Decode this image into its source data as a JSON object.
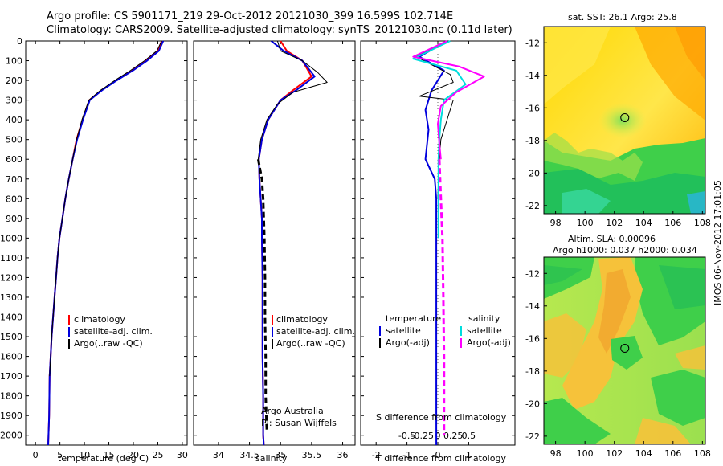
{
  "header": {
    "line1": "Argo profile: CS 5901171_219 29-Oct-2012 20121030_399 16.599S 102.714E",
    "line2": "Climatology: CARS2009. Satellite-adjusted climatology: synTS_20121030.nc (0.11d later)"
  },
  "side_stamp": "IMOS 06-Nov-2012 17:01:05",
  "colors": {
    "climatology": "#ff0000",
    "satellite": "#0000dd",
    "argo": "#000000",
    "sal_satellite": "#00dddd",
    "sal_argo": "#ff00ff"
  },
  "chart_data": [
    {
      "type": "line",
      "id": "temperature",
      "xlabel": "temperature (deg C)",
      "ylabel": "",
      "xlim": [
        -2,
        31
      ],
      "ylim": [
        2050,
        0
      ],
      "xticks": [
        0,
        5,
        10,
        15,
        20,
        25,
        30
      ],
      "yticks": [
        0,
        100,
        200,
        300,
        400,
        500,
        600,
        700,
        800,
        900,
        1000,
        1100,
        1200,
        1300,
        1400,
        1500,
        1600,
        1700,
        1800,
        1900,
        2000
      ],
      "legend": [
        "climatology",
        "satellite-adj. clim.",
        "Argo(..raw -QC)"
      ],
      "series": [
        {
          "name": "climatology",
          "color": "#ff0000",
          "width": 2,
          "dash": "",
          "x": [
            25.8,
            25.0,
            22.5,
            19.8,
            16.5,
            13.5,
            11.0,
            9.6,
            8.4,
            7.6,
            6.8,
            6.1,
            5.5,
            4.9,
            4.5,
            4.2,
            3.9,
            3.6,
            3.3,
            3.1,
            2.9,
            2.8,
            2.6
          ],
          "y": [
            0,
            50,
            100,
            150,
            200,
            250,
            300,
            400,
            500,
            600,
            700,
            800,
            900,
            1000,
            1100,
            1200,
            1300,
            1400,
            1500,
            1600,
            1700,
            1900,
            2050
          ]
        },
        {
          "name": "satellite-adj. clim.",
          "color": "#0000dd",
          "width": 2,
          "dash": "",
          "x": [
            26.1,
            25.2,
            22.8,
            19.9,
            16.6,
            13.6,
            11.1,
            9.7,
            8.5,
            7.6,
            6.8,
            6.1,
            5.5,
            4.9,
            4.5,
            4.2,
            3.9,
            3.6,
            3.3,
            3.1,
            2.9,
            2.8,
            2.6
          ],
          "y": [
            0,
            50,
            100,
            150,
            200,
            250,
            300,
            400,
            500,
            600,
            700,
            800,
            900,
            1000,
            1100,
            1200,
            1300,
            1400,
            1500,
            1600,
            1700,
            1900,
            2050
          ]
        },
        {
          "name": "Argo(..raw -QC)",
          "color": "#000000",
          "width": 1,
          "dash": "",
          "x": [
            25.8,
            24.8,
            22.3,
            19.4,
            16.2,
            13.3,
            10.9,
            9.5,
            8.4,
            7.6,
            6.8,
            6.1,
            5.5,
            4.9,
            4.5,
            4.2,
            3.9,
            3.6,
            3.3,
            3.1,
            2.9
          ],
          "y": [
            0,
            50,
            100,
            150,
            200,
            250,
            300,
            400,
            500,
            600,
            700,
            800,
            900,
            1000,
            1100,
            1200,
            1300,
            1400,
            1500,
            1600,
            1700
          ]
        }
      ]
    },
    {
      "type": "line",
      "id": "salinity",
      "xlabel": "salinity",
      "ylabel": "",
      "xlim": [
        33.6,
        36.2
      ],
      "ylim": [
        2050,
        0
      ],
      "xticks": [
        34,
        34.5,
        35,
        35.5,
        36
      ],
      "xticklabels": [
        "34",
        "34.5",
        "35",
        "35.5",
        "36"
      ],
      "legend": [
        "climatology",
        "satellite-adj. clim.",
        "Argo(..raw -QC)"
      ],
      "annotations": [
        "Argo Australia",
        "PI: Susan Wijffels"
      ],
      "series": [
        {
          "name": "climatology",
          "color": "#ff0000",
          "width": 2,
          "dash": "",
          "x": [
            35.0,
            35.1,
            35.35,
            35.5,
            35.2,
            35.0,
            34.8,
            34.7,
            34.65,
            34.66,
            34.68,
            34.7,
            34.7,
            34.71,
            34.71,
            34.71,
            34.72,
            34.72,
            34.72,
            34.73
          ],
          "y": [
            0,
            50,
            100,
            180,
            250,
            300,
            400,
            500,
            600,
            700,
            800,
            900,
            1000,
            1200,
            1400,
            1600,
            1800,
            1900,
            2000,
            2050
          ]
        },
        {
          "name": "satellite-adj. clim.",
          "color": "#0000dd",
          "width": 2,
          "dash": "",
          "x": [
            34.85,
            35.05,
            35.35,
            35.55,
            35.25,
            35.0,
            34.8,
            34.7,
            34.65,
            34.66,
            34.68,
            34.7,
            34.7,
            34.71,
            34.71,
            34.71,
            34.72,
            34.72,
            34.72,
            34.73
          ],
          "y": [
            0,
            50,
            100,
            180,
            250,
            300,
            400,
            500,
            600,
            700,
            800,
            900,
            1000,
            1200,
            1400,
            1600,
            1800,
            1900,
            2000,
            2050
          ]
        },
        {
          "name": "Argo(..raw -QC)",
          "color": "#000000",
          "width": 1,
          "dash": "",
          "x": [
            34.95,
            35.0,
            35.35,
            35.6,
            35.75,
            35.2,
            34.95,
            34.78,
            34.68,
            34.64
          ],
          "y": [
            0,
            50,
            100,
            160,
            210,
            260,
            320,
            400,
            500,
            600
          ]
        },
        {
          "name": "Argo(..raw -QC) adj",
          "color": "#000000",
          "width": 3,
          "dash": "7,4",
          "x": [
            34.64,
            34.7,
            34.72,
            34.74,
            34.75,
            34.75,
            34.76,
            34.76,
            34.77,
            34.78
          ],
          "y": [
            600,
            700,
            800,
            1000,
            1200,
            1400,
            1600,
            1800,
            1900,
            1980
          ]
        }
      ]
    },
    {
      "type": "line",
      "id": "differences",
      "xlabel": "T difference from climatology",
      "top_axis_label": "S difference from climatology",
      "xlim": [
        -2.5,
        2.5
      ],
      "ylim": [
        2050,
        0
      ],
      "xticks": [
        -2,
        -1,
        0,
        1
      ],
      "xticklabels": [
        "-2",
        "-1",
        "0",
        "1"
      ],
      "top_ticks": [
        -1.0,
        -0.5,
        0,
        0.5,
        1.0
      ],
      "top_ticklabels": [
        "-0.5",
        "-0.25",
        "0",
        "0.25",
        "0.5"
      ],
      "legend_temperature": [
        "temperature",
        "satellite",
        "Argo(-adj)"
      ],
      "legend_salinity": [
        "salinity",
        "satellite",
        "Argo(-adj)"
      ],
      "series": [
        {
          "name": "temperature satellite",
          "color": "#0000dd",
          "width": 2,
          "dash": "",
          "x": [
            0.3,
            -0.6,
            0.2,
            -0.2,
            -0.4,
            -0.3,
            -0.4,
            -0.1,
            -0.05,
            -0.05,
            -0.05,
            -0.05,
            -0.05
          ],
          "y": [
            0,
            80,
            150,
            250,
            350,
            450,
            600,
            700,
            800,
            1000,
            1200,
            1600,
            2050
          ]
        },
        {
          "name": "temperature Argo(-adj)",
          "color": "#000000",
          "width": 1,
          "dash": "",
          "x": [
            0.3,
            -0.7,
            0.4,
            0.5,
            -0.6,
            0.5,
            0.3,
            0.1,
            0.05,
            0.02,
            0.0
          ],
          "y": [
            0,
            80,
            170,
            210,
            280,
            300,
            400,
            500,
            600,
            700,
            800
          ]
        },
        {
          "name": "salinity satellite",
          "color": "#00dddd",
          "width": 2,
          "dash": "",
          "x": [
            0.4,
            -0.8,
            0.6,
            0.9,
            0.2,
            0.1,
            0.05,
            0.02,
            0.02,
            0.02
          ],
          "y": [
            0,
            90,
            150,
            220,
            300,
            400,
            500,
            600,
            800,
            1000
          ]
        },
        {
          "name": "salinity Argo(-adj)",
          "color": "#ff00ff",
          "width": 2,
          "dash": "",
          "x": [
            0.3,
            -0.8,
            0.7,
            1.5,
            0.6,
            0.1,
            0.0,
            0.05,
            0.1
          ],
          "y": [
            0,
            80,
            130,
            180,
            260,
            330,
            420,
            520,
            600
          ]
        },
        {
          "name": "salinity Argo(-adj) adj",
          "color": "#ff00ff",
          "width": 3,
          "dash": "7,4",
          "x": [
            0.05,
            0.1,
            0.15,
            0.18,
            0.2,
            0.2,
            0.2
          ],
          "y": [
            600,
            800,
            1000,
            1300,
            1600,
            1900,
            2000
          ]
        }
      ]
    },
    {
      "type": "heatmap",
      "id": "sst-map",
      "title": "sat. SST: 26.1  Argo: 25.8",
      "xticks": [
        98,
        100,
        102,
        104,
        106,
        108
      ],
      "yticks": [
        -12,
        -14,
        -16,
        -18,
        -20,
        -22
      ],
      "xlim": [
        97.2,
        108.2
      ],
      "ylim": [
        -22.5,
        -11.0
      ],
      "marker": {
        "lon": 102.714,
        "lat": -16.599
      }
    },
    {
      "type": "heatmap",
      "id": "sla-map",
      "title": "Altim. SLA: 0.00096",
      "subtitle": "Argo h1000: 0.037  h2000: 0.034",
      "xticks": [
        98,
        100,
        102,
        104,
        106,
        108
      ],
      "yticks": [
        -12,
        -14,
        -16,
        -18,
        -20,
        -22
      ],
      "xlim": [
        97.2,
        108.2
      ],
      "ylim": [
        -22.5,
        -11.0
      ],
      "marker": {
        "lon": 102.714,
        "lat": -16.599
      }
    }
  ]
}
